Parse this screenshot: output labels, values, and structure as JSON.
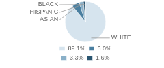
{
  "chart_data": {
    "type": "pie",
    "categories": [
      "WHITE",
      "ASIAN",
      "HISPANIC",
      "BLACK"
    ],
    "values": [
      89.1,
      6.0,
      3.3,
      1.6
    ],
    "value_labels": [
      "89.1%",
      "6.0%",
      "3.3%",
      "1.6%"
    ],
    "colors": [
      "#d6e4ee",
      "#4a7fa0",
      "#8ab0c8",
      "#2a5570"
    ],
    "legend": "bottom"
  }
}
